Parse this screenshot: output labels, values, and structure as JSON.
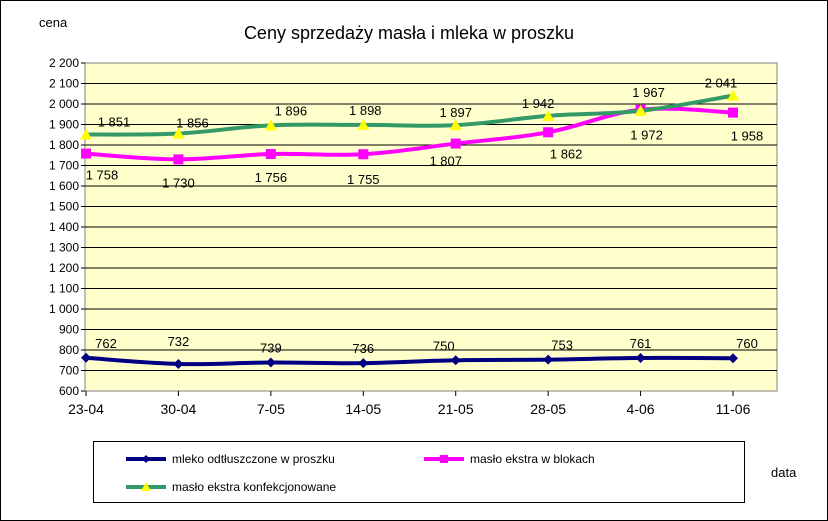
{
  "chart_data": {
    "type": "line",
    "title": "Ceny sprzedaży masła i mleka w proszku",
    "ylabel": "cena",
    "xlabel": "data",
    "categories": [
      "23-04",
      "30-04",
      "7-05",
      "14-05",
      "21-05",
      "28-05",
      "4-06",
      "11-06"
    ],
    "ylim": [
      600,
      2200
    ],
    "yticks": [
      600,
      700,
      800,
      900,
      1000,
      1100,
      1200,
      1300,
      1400,
      1500,
      1600,
      1700,
      1800,
      1900,
      2000,
      2100,
      2200
    ],
    "ytick_labels": [
      "600",
      "700",
      "800",
      "900",
      "1 000",
      "1 100",
      "1 200",
      "1 300",
      "1 400",
      "1 500",
      "1 600",
      "1 700",
      "1 800",
      "1 900",
      "2 000",
      "2 100",
      "2 200"
    ],
    "grid": true,
    "legend_position": "bottom",
    "series": [
      {
        "name": "mleko odtłuszczone w proszku",
        "values": [
          762,
          732,
          739,
          736,
          750,
          753,
          761,
          760
        ],
        "labels": [
          "762",
          "732",
          "739",
          "736",
          "750",
          "753",
          "761",
          "760"
        ],
        "color": "#000080",
        "marker": "diamond"
      },
      {
        "name": "masło ekstra w blokach",
        "values": [
          1758,
          1730,
          1756,
          1755,
          1807,
          1862,
          1972,
          1958
        ],
        "labels": [
          "1 758",
          "1 730",
          "1 756",
          "1 755",
          "1 807",
          "1 862",
          "1 972",
          "1 958"
        ],
        "color": "#FF00FF",
        "marker": "square"
      },
      {
        "name": "masło ekstra konfekcjonowane",
        "values": [
          1851,
          1856,
          1896,
          1898,
          1897,
          1942,
          1967,
          2041
        ],
        "labels": [
          "1 851",
          "1 856",
          "1 896",
          "1 898",
          "1 897",
          "1 942",
          "1 967",
          "2 041"
        ],
        "color": "#339966",
        "marker_color": "#FFFF00",
        "marker": "triangle"
      }
    ],
    "plot_background": "#FFFFCC"
  }
}
